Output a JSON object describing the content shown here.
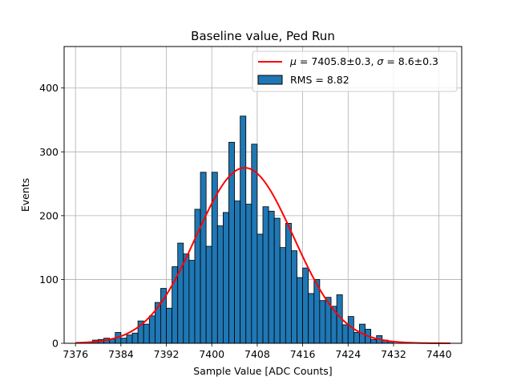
{
  "chart_data": {
    "type": "bar",
    "title": "Baseline value, Ped Run",
    "xlabel": "Sample Value [ADC Counts]",
    "ylabel": "Events",
    "xlim": [
      7374,
      7444
    ],
    "ylim": [
      0,
      465
    ],
    "xticks": [
      7376,
      7384,
      7392,
      7400,
      7408,
      7416,
      7424,
      7432,
      7440
    ],
    "yticks": [
      0,
      100,
      200,
      300,
      400
    ],
    "grid": true,
    "legend_position": "top-right",
    "bin_width": 1,
    "bar_color": "#1f77b4",
    "bar_edge_color": "#000000",
    "fit_color": "#ff0000",
    "histogram": {
      "name": "RMS = 8.82",
      "bin_left_edges": [
        7379,
        7380,
        7381,
        7382,
        7383,
        7384,
        7385,
        7386,
        7387,
        7388,
        7389,
        7390,
        7391,
        7392,
        7393,
        7394,
        7395,
        7396,
        7397,
        7398,
        7399,
        7400,
        7401,
        7402,
        7403,
        7404,
        7405,
        7406,
        7407,
        7408,
        7409,
        7410,
        7411,
        7412,
        7413,
        7414,
        7415,
        7416,
        7417,
        7418,
        7419,
        7420,
        7421,
        7422,
        7423,
        7424,
        7425,
        7426,
        7427,
        7428,
        7429,
        7430,
        7431
      ],
      "counts": [
        5,
        6,
        8,
        7,
        17,
        8,
        13,
        16,
        35,
        30,
        43,
        64,
        86,
        55,
        120,
        157,
        140,
        130,
        210,
        268,
        152,
        268,
        184,
        205,
        315,
        223,
        356,
        218,
        312,
        171,
        214,
        207,
        196,
        150,
        188,
        145,
        103,
        118,
        78,
        100,
        67,
        72,
        58,
        76,
        29,
        42,
        17,
        30,
        22,
        6,
        12,
        5,
        3
      ]
    },
    "fit": {
      "name": "μ = 7405.8±0.3, σ = 8.6±0.3",
      "mu": 7405.8,
      "sigma": 8.6,
      "amplitude": 275,
      "x_range": [
        7376,
        7442
      ]
    }
  },
  "legend": {
    "fit_label_mu": "μ",
    "fit_label_mu_value": " = 7405.8±0.3, ",
    "fit_label_sigma": "σ",
    "fit_label_sigma_value": " = 8.6±0.3",
    "hist_label": "RMS = 8.82"
  }
}
